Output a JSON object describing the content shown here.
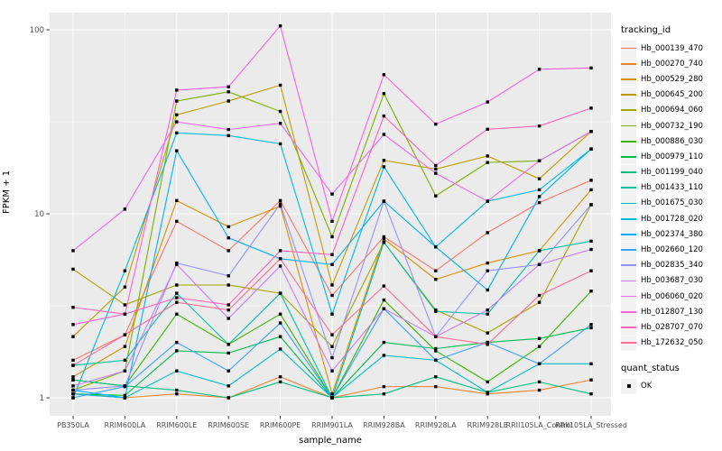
{
  "figure": {
    "background": "#FFFFFF",
    "panel_background": "#EBEBEB",
    "grid_color": "#FFFFFF",
    "tick_color": "#333333",
    "tick_label_color": "#4D4D4D",
    "point_color": "#000000"
  },
  "chart_data": {
    "type": "line",
    "title": "",
    "xlabel": "sample_name",
    "ylabel": "FPKM + 1",
    "y_scale": "log10",
    "y_ticks": [
      1,
      10,
      100
    ],
    "ylim": [
      0.85,
      125
    ],
    "grid": true,
    "legend_position": "right",
    "point_shape": "filled-square",
    "legend": {
      "color_title": "tracking_id",
      "shape_title": "quant_status",
      "shape_items": [
        {
          "label": "OK",
          "shape": "filled-square",
          "color": "#000000"
        }
      ]
    },
    "categories": [
      "PB350LA",
      "RRIM600LA",
      "RRIM600LE",
      "RRIM600SE",
      "RRIM600PE",
      "RRIM901LA",
      "RRIM928BA",
      "RRIM928LA",
      "RRIM928LE",
      "RRII105LA_Control",
      "RRII105LA_Stressed"
    ],
    "series": [
      {
        "name": "Hb_000139_470",
        "color": "#F8766D",
        "quant_status": "OK",
        "values": [
          1.6,
          2.2,
          9.1,
          6.3,
          11.8,
          3.6,
          7.5,
          4.9,
          7.9,
          11.5,
          15.2
        ]
      },
      {
        "name": "Hb_000270_740",
        "color": "#EA8331",
        "quant_status": "OK",
        "values": [
          1.05,
          1.0,
          1.05,
          1.0,
          1.3,
          1.0,
          1.15,
          1.15,
          1.05,
          1.1,
          1.25
        ]
      },
      {
        "name": "Hb_000529_280",
        "color": "#D89000",
        "quant_status": "OK",
        "values": [
          1.3,
          1.9,
          11.8,
          8.5,
          11.0,
          1.05,
          7.3,
          4.4,
          5.4,
          6.3,
          13.5
        ]
      },
      {
        "name": "Hb_000645_200",
        "color": "#C09B00",
        "quant_status": "OK",
        "values": [
          2.15,
          4.0,
          34.5,
          41,
          50,
          4.1,
          19.5,
          17.5,
          20.6,
          15.5,
          28
        ]
      },
      {
        "name": "Hb_000694_060",
        "color": "#A3A500",
        "quant_status": "OK",
        "values": [
          5.0,
          3.2,
          4.1,
          4.1,
          3.7,
          1.9,
          7.0,
          3.0,
          2.25,
          3.3,
          11.2
        ]
      },
      {
        "name": "Hb_000732_190",
        "color": "#7CAE00",
        "quant_status": "OK",
        "values": [
          1.1,
          1.4,
          41,
          46,
          36,
          7.5,
          45,
          12.5,
          19,
          19.4,
          28
        ]
      },
      {
        "name": "Hb_000886_030",
        "color": "#39B600",
        "quant_status": "OK",
        "values": [
          1.25,
          1.16,
          2.85,
          1.95,
          2.85,
          1.0,
          3.4,
          1.8,
          1.22,
          1.9,
          3.8
        ]
      },
      {
        "name": "Hb_000979_110",
        "color": "#00BB4E",
        "quant_status": "OK",
        "values": [
          1.05,
          1.03,
          1.8,
          1.75,
          2.15,
          1.0,
          2.0,
          1.85,
          2.0,
          2.1,
          2.4
        ]
      },
      {
        "name": "Hb_001199_040",
        "color": "#00BF7D",
        "quant_status": "OK",
        "values": [
          1.25,
          1.16,
          1.1,
          1.0,
          1.22,
          1.0,
          1.05,
          1.3,
          1.07,
          1.22,
          1.05
        ]
      },
      {
        "name": "Hb_001433_110",
        "color": "#00C1A3",
        "quant_status": "OK",
        "values": [
          1.5,
          1.6,
          3.7,
          1.95,
          3.7,
          1.0,
          7.0,
          2.95,
          2.85,
          6.3,
          7.1
        ]
      },
      {
        "name": "Hb_001675_030",
        "color": "#00BFC4",
        "quant_status": "OK",
        "values": [
          1.05,
          1.0,
          1.4,
          1.16,
          1.84,
          1.0,
          1.7,
          1.6,
          1.07,
          1.53,
          1.53
        ]
      },
      {
        "name": "Hb_001728_020",
        "color": "#00BAE0",
        "quant_status": "OK",
        "values": [
          1.0,
          4.9,
          27.5,
          26.6,
          24,
          2.85,
          18,
          6.6,
          11.7,
          13.5,
          22.5
        ]
      },
      {
        "name": "Hb_002374_380",
        "color": "#00B0F6",
        "quant_status": "OK",
        "values": [
          1.1,
          1.0,
          22,
          7.4,
          5.7,
          5.3,
          11.7,
          6.6,
          3.85,
          12.4,
          22.5
        ]
      },
      {
        "name": "Hb_002660_120",
        "color": "#35A2FF",
        "quant_status": "OK",
        "values": [
          1.0,
          1.15,
          2.0,
          1.4,
          2.55,
          1.0,
          3.05,
          1.6,
          2.0,
          1.53,
          2.5
        ]
      },
      {
        "name": "Hb_002835_340",
        "color": "#9590FF",
        "quant_status": "OK",
        "values": [
          1.1,
          1.16,
          5.4,
          4.6,
          11.3,
          1.65,
          11.7,
          2.15,
          4.9,
          5.3,
          11.2
        ]
      },
      {
        "name": "Hb_003687_030",
        "color": "#C77CFF",
        "quant_status": "OK",
        "values": [
          1.16,
          1.4,
          5.3,
          2.7,
          5.2,
          1.4,
          3.05,
          2.15,
          3.0,
          5.3,
          6.4
        ]
      },
      {
        "name": "Hb_006060_020",
        "color": "#E76BF3",
        "quant_status": "OK",
        "values": [
          6.3,
          10.6,
          31.6,
          28.7,
          31,
          12.8,
          27,
          16.6,
          11.7,
          19.4,
          28
        ]
      },
      {
        "name": "Hb_012807_130",
        "color": "#FA62DB",
        "quant_status": "OK",
        "values": [
          2.5,
          2.85,
          47,
          49,
          105,
          9.1,
          57,
          30.7,
          40.5,
          61,
          62
        ]
      },
      {
        "name": "Hb_028707_070",
        "color": "#FF62BC",
        "quant_status": "OK",
        "values": [
          3.1,
          2.85,
          3.5,
          3.2,
          6.3,
          6.0,
          34,
          18.3,
          28.8,
          30,
          37.5
        ]
      },
      {
        "name": "Hb_172632_050",
        "color": "#FF6A98",
        "quant_status": "OK",
        "values": [
          1.5,
          2.2,
          3.3,
          3.0,
          5.7,
          2.2,
          4.05,
          2.15,
          1.95,
          3.6,
          4.9
        ]
      }
    ]
  }
}
